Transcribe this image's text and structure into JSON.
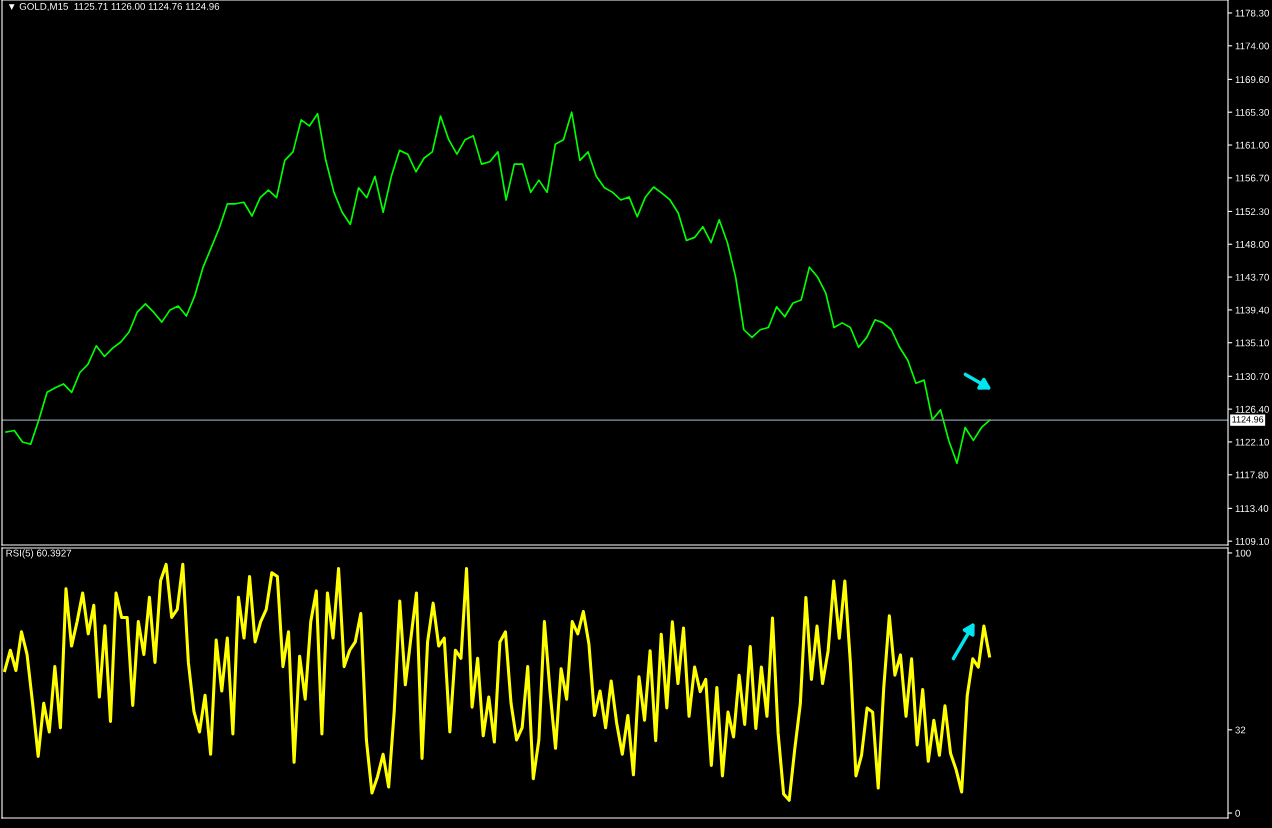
{
  "chart_data": [
    {
      "type": "line",
      "title": "▼ GOLD,M15  1125.71 1126.00 1124.76 1124.96",
      "categories": [
        null,
        null,
        null,
        null,
        null,
        null,
        null,
        null,
        null,
        null,
        null,
        null,
        null,
        null,
        null,
        null,
        null,
        null,
        null,
        null,
        null,
        null,
        null,
        null,
        null,
        null,
        null,
        null,
        null,
        null,
        null,
        null,
        null,
        null,
        null,
        null,
        null,
        null,
        null,
        null,
        null,
        null,
        null,
        null,
        null,
        null,
        null,
        null,
        null,
        null,
        null,
        null,
        null,
        null,
        null,
        null,
        null,
        null,
        null,
        null,
        null,
        null,
        null,
        null,
        null,
        null,
        null,
        null,
        null,
        null,
        null,
        null,
        null,
        null,
        null,
        null,
        null,
        null,
        null,
        null,
        null,
        null,
        null,
        null,
        null,
        null,
        null,
        null,
        null,
        null,
        null,
        null,
        null,
        null,
        null,
        null,
        null,
        null,
        null,
        null,
        null,
        null,
        null,
        null,
        null,
        null,
        null,
        null,
        null,
        null,
        null,
        null,
        null,
        null,
        null,
        null,
        null,
        null,
        null,
        null,
        null
      ],
      "series": [
        {
          "color": "#00ff00",
          "values": [
            1123.4,
            1123.6,
            1122.1,
            1121.8,
            1125.0,
            1128.6,
            1129.2,
            1129.7,
            1128.6,
            1131.2,
            1132.3,
            1134.7,
            1133.3,
            1134.4,
            1135.2,
            1136.5,
            1139.1,
            1140.2,
            1139.1,
            1137.8,
            1139.4,
            1139.9,
            1138.6,
            1141.2,
            1144.9,
            1147.5,
            1150.1,
            1153.3,
            1153.3,
            1153.5,
            1151.7,
            1154.1,
            1155.1,
            1154.1,
            1159.0,
            1160.1,
            1164.3,
            1163.5,
            1165.1,
            1159.0,
            1154.8,
            1152.2,
            1150.6,
            1155.4,
            1154.1,
            1156.9,
            1152.2,
            1156.9,
            1160.3,
            1159.8,
            1157.5,
            1159.3,
            1160.1,
            1164.8,
            1161.7,
            1159.8,
            1161.7,
            1162.2,
            1158.5,
            1158.8,
            1160.1,
            1153.8,
            1158.5,
            1158.5,
            1154.8,
            1156.4,
            1154.8,
            1161.1,
            1161.7,
            1165.3,
            1159.0,
            1160.1,
            1156.9,
            1155.4,
            1154.8,
            1153.8,
            1154.2,
            1151.6,
            1154.2,
            1155.5,
            1154.7,
            1153.8,
            1152.1,
            1148.5,
            1148.9,
            1150.3,
            1148.2,
            1151.2,
            1148.2,
            1143.7,
            1136.8,
            1135.8,
            1136.8,
            1137.1,
            1139.8,
            1138.5,
            1140.3,
            1140.7,
            1145.0,
            1143.7,
            1141.6,
            1137.1,
            1137.7,
            1137.1,
            1134.5,
            1135.8,
            1138.1,
            1137.7,
            1136.8,
            1134.5,
            1132.8,
            1129.8,
            1130.2,
            1125.0,
            1126.3,
            1122.3,
            1119.3,
            1124.0,
            1122.3,
            1124.0,
            1124.96
          ]
        }
      ],
      "ylim": [
        1108.6,
        1180.0
      ],
      "yticks": [
        {
          "value": 1109.1,
          "label": "1109.10"
        },
        {
          "value": 1113.4,
          "label": "1113.40"
        },
        {
          "value": 1117.8,
          "label": "1117.80"
        },
        {
          "value": 1122.1,
          "label": "1122.10"
        },
        {
          "value": 1126.4,
          "label": "1126.40"
        },
        {
          "value": 1130.7,
          "label": "1130.70"
        },
        {
          "value": 1135.1,
          "label": "1135.10"
        },
        {
          "value": 1139.4,
          "label": "1139.40"
        },
        {
          "value": 1143.7,
          "label": "1143.70"
        },
        {
          "value": 1148.0,
          "label": "1148.00"
        },
        {
          "value": 1152.3,
          "label": "1152.30"
        },
        {
          "value": 1156.7,
          "label": "1156.70"
        },
        {
          "value": 1161.0,
          "label": "1161.00"
        },
        {
          "value": 1165.3,
          "label": "1165.30"
        },
        {
          "value": 1169.6,
          "label": "1169.60"
        },
        {
          "value": 1174.0,
          "label": "1174.00"
        },
        {
          "value": 1178.3,
          "label": "1178.30"
        }
      ],
      "ref_lines": [
        {
          "axis": "y",
          "value": 1124.96,
          "label": "1124.96",
          "color": "#8898a8"
        }
      ],
      "tick_labels": "y"
    },
    {
      "type": "line",
      "title": "RSI(5) 60.3927",
      "categories": [
        null,
        null,
        null,
        null,
        null,
        null,
        null,
        null,
        null,
        null,
        null,
        null,
        null,
        null,
        null,
        null,
        null,
        null,
        null,
        null,
        null,
        null,
        null,
        null,
        null,
        null,
        null,
        null,
        null,
        null,
        null,
        null,
        null,
        null,
        null,
        null,
        null,
        null,
        null,
        null,
        null,
        null,
        null,
        null,
        null,
        null,
        null,
        null,
        null,
        null,
        null,
        null,
        null,
        null,
        null,
        null,
        null,
        null,
        null,
        null,
        null,
        null,
        null,
        null,
        null,
        null,
        null,
        null,
        null,
        null,
        null,
        null,
        null,
        null,
        null,
        null,
        null,
        null,
        null,
        null,
        null,
        null,
        null,
        null,
        null,
        null,
        null,
        null,
        null,
        null,
        null,
        null,
        null,
        null,
        null,
        null,
        null,
        null,
        null,
        null,
        null,
        null,
        null,
        null,
        null,
        null,
        null,
        null,
        null,
        null,
        null,
        null,
        null,
        null,
        null,
        null,
        null,
        null,
        null,
        null,
        null,
        null,
        null,
        null,
        null,
        null,
        null,
        null,
        null,
        null,
        null,
        null,
        null,
        null,
        null,
        null,
        null,
        null,
        null,
        null,
        null,
        null,
        null,
        null,
        null,
        null,
        null,
        null,
        null,
        null,
        null,
        null,
        null,
        null,
        null,
        null,
        null,
        null,
        null,
        null,
        null,
        null,
        null,
        null,
        null,
        null,
        null,
        null,
        null,
        null,
        null,
        null,
        null,
        null,
        null,
        null,
        null,
        null
      ],
      "series": [
        {
          "color": "#ffff00",
          "values": [
            54.8,
            62.6,
            54.8,
            69.7,
            61.0,
            42.2,
            21.8,
            42.2,
            31.2,
            56.3,
            32.8,
            86.2,
            64.2,
            73.6,
            84.6,
            68.9,
            79.9,
            44.6,
            72.0,
            35.2,
            84.6,
            75.2,
            75.2,
            41.4,
            73.6,
            61.0,
            83.0,
            57.9,
            89.3,
            95.6,
            75.2,
            78.3,
            95.6,
            57.9,
            39.1,
            31.2,
            45.3,
            22.6,
            66.5,
            46.9,
            67.3,
            30.4,
            83.0,
            67.3,
            90.9,
            65.8,
            73.6,
            78.3,
            92.4,
            90.9,
            56.3,
            69.7,
            19.5,
            60.3,
            43.8,
            73.6,
            85.4,
            30.4,
            84.6,
            67.3,
            94.0,
            56.3,
            62.6,
            65.8,
            76.7,
            28.1,
            7.7,
            14.0,
            22.6,
            10.0,
            39.1,
            81.5,
            49.3,
            67.3,
            84.6,
            21.0,
            65.8,
            80.7,
            64.2,
            67.3,
            31.2,
            62.6,
            59.5,
            94.0,
            40.7,
            59.5,
            29.7,
            44.6,
            27.3,
            65.8,
            69.7,
            42.2,
            28.1,
            32.8,
            56.3,
            13.2,
            28.1,
            73.6,
            46.9,
            24.9,
            55.5,
            43.8,
            73.6,
            68.9,
            77.5,
            65.0,
            37.5,
            46.9,
            32.8,
            50.8,
            34.3,
            22.6,
            37.5,
            14.7,
            52.4,
            35.7,
            62.4,
            27.8,
            68.7,
            40.4,
            73.5,
            49.8,
            71.1,
            37.2,
            56.1,
            46.7,
            51.4,
            18.3,
            48.3,
            14.3,
            38.8,
            29.3,
            53.0,
            34.1,
            64.0,
            32.5,
            56.1,
            37.2,
            75.0,
            30.9,
            7.3,
            4.9,
            24.6,
            42.0,
            82.9,
            51.4,
            71.9,
            49.8,
            62.4,
            89.2,
            67.2,
            89.2,
            57.7,
            14.3,
            22.2,
            40.4,
            38.8,
            9.6,
            48.3,
            75.8,
            53.0,
            60.8,
            37.2,
            59.3,
            26.2,
            47.5,
            19.9,
            35.7,
            22.2,
            41.2,
            23.0,
            16.7,
            8.1,
            45.1,
            59.3,
            56.1,
            71.9,
            60.4
          ]
        }
      ],
      "ylim": [
        -1.9,
        101.9
      ],
      "yticks": [
        0,
        32,
        100
      ],
      "tick_labels": "y"
    }
  ]
}
